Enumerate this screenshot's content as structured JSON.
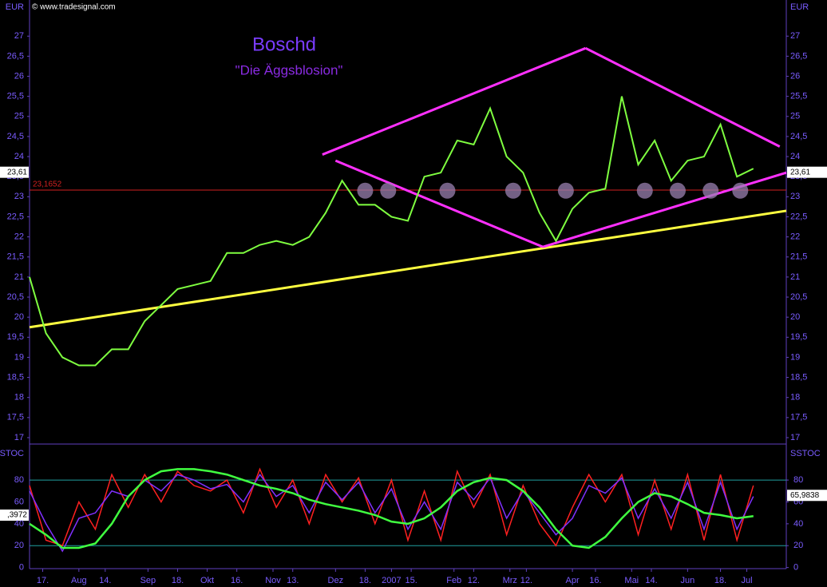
{
  "chart_data": {
    "type": "stock",
    "source": "© www.tradesignal.com",
    "title": "Boschd",
    "subtitle": "\"Die Äggsblosion\"",
    "currency": "EUR",
    "xlim": [
      0,
      230
    ],
    "xticks": [
      {
        "value": 4,
        "label": "17."
      },
      {
        "value": 15,
        "label": "Aug"
      },
      {
        "value": 23,
        "label": "14."
      },
      {
        "value": 36,
        "label": "Sep"
      },
      {
        "value": 45,
        "label": "18."
      },
      {
        "value": 54,
        "label": "Okt"
      },
      {
        "value": 63,
        "label": "16."
      },
      {
        "value": 74,
        "label": "Nov"
      },
      {
        "value": 80,
        "label": "13."
      },
      {
        "value": 93,
        "label": "Dez"
      },
      {
        "value": 102,
        "label": "18."
      },
      {
        "value": 110,
        "label": "2007"
      },
      {
        "value": 116,
        "label": "15."
      },
      {
        "value": 129,
        "label": "Feb"
      },
      {
        "value": 135,
        "label": "12."
      },
      {
        "value": 146,
        "label": "Mrz"
      },
      {
        "value": 151,
        "label": "12."
      },
      {
        "value": 165,
        "label": "Apr"
      },
      {
        "value": 172,
        "label": "16."
      },
      {
        "value": 183,
        "label": "Mai"
      },
      {
        "value": 189,
        "label": "14."
      },
      {
        "value": 200,
        "label": "Jun"
      },
      {
        "value": 210,
        "label": "18."
      },
      {
        "value": 218,
        "label": "Jul"
      }
    ],
    "ylim": [
      16.9,
      27.9
    ],
    "yticks": [
      {
        "value": 17,
        "label": "17"
      },
      {
        "value": 17.5,
        "label": "17,5"
      },
      {
        "value": 18,
        "label": "18"
      },
      {
        "value": 18.5,
        "label": "18,5"
      },
      {
        "value": 19,
        "label": "19"
      },
      {
        "value": 19.5,
        "label": "19,5"
      },
      {
        "value": 20,
        "label": "20"
      },
      {
        "value": 20.5,
        "label": "20,5"
      },
      {
        "value": 21,
        "label": "21"
      },
      {
        "value": 21.5,
        "label": "21,5"
      },
      {
        "value": 22,
        "label": "22"
      },
      {
        "value": 22.5,
        "label": "22,5"
      },
      {
        "value": 23,
        "label": "23"
      },
      {
        "value": 23.5,
        "label": "23,5"
      },
      {
        "value": 24,
        "label": "24"
      },
      {
        "value": 24.5,
        "label": "24,5"
      },
      {
        "value": 25,
        "label": "25"
      },
      {
        "value": 25.5,
        "label": "25,5"
      },
      {
        "value": 26,
        "label": "26"
      },
      {
        "value": 26.5,
        "label": "26,5"
      },
      {
        "value": 27,
        "label": "27"
      }
    ],
    "price": {
      "color": "#7fff40",
      "x": [
        0,
        5,
        10,
        15,
        20,
        25,
        30,
        35,
        40,
        45,
        50,
        55,
        60,
        65,
        70,
        75,
        80,
        85,
        90,
        95,
        100,
        105,
        110,
        115,
        120,
        125,
        130,
        135,
        140,
        145,
        150,
        155,
        160,
        165,
        170,
        175,
        180,
        185,
        190,
        195,
        200,
        205,
        210,
        215,
        220
      ],
      "values": [
        21.0,
        19.6,
        19.0,
        18.8,
        18.8,
        19.2,
        19.2,
        19.9,
        20.3,
        20.7,
        20.8,
        20.9,
        21.6,
        21.6,
        21.8,
        21.9,
        21.8,
        22.0,
        22.6,
        23.4,
        22.8,
        22.8,
        22.5,
        22.4,
        23.5,
        23.6,
        24.4,
        24.3,
        25.2,
        24.0,
        23.6,
        22.6,
        21.9,
        22.7,
        23.1,
        23.2,
        25.5,
        23.8,
        24.4,
        23.4,
        23.9,
        24.0,
        24.8,
        23.5,
        23.7
      ]
    },
    "last_price": {
      "value": 23.61,
      "label": "23,61"
    },
    "support": {
      "value": 23.1652,
      "label": "23,1652",
      "color": "#d02020"
    },
    "trendlines": [
      {
        "color": "#ffff40",
        "points": [
          [
            0,
            19.75
          ],
          [
            230,
            22.65
          ]
        ]
      },
      {
        "color": "#ff30ff",
        "points": [
          [
            89,
            24.05
          ],
          [
            169,
            26.7
          ]
        ]
      },
      {
        "color": "#ff30ff",
        "points": [
          [
            169,
            26.7
          ],
          [
            228,
            24.25
          ]
        ]
      },
      {
        "color": "#ff30ff",
        "points": [
          [
            93,
            23.9
          ],
          [
            156,
            21.75
          ]
        ]
      },
      {
        "color": "#ff30ff",
        "points": [
          [
            156,
            21.75
          ],
          [
            230,
            23.6
          ]
        ]
      }
    ],
    "markers": {
      "x": [
        102,
        109,
        127,
        147,
        163,
        187,
        197,
        207,
        216
      ],
      "y": 23.15,
      "color": "#9a80b0"
    },
    "stoch": {
      "name": "SSTOC",
      "ylim": [
        -1,
        110
      ],
      "yticks": [
        0,
        20,
        40,
        60,
        80
      ],
      "levels": [
        20,
        80
      ],
      "x": [
        0,
        5,
        10,
        15,
        20,
        25,
        30,
        35,
        40,
        45,
        50,
        55,
        60,
        65,
        70,
        75,
        80,
        85,
        90,
        95,
        100,
        105,
        110,
        115,
        120,
        125,
        130,
        135,
        140,
        145,
        150,
        155,
        160,
        165,
        170,
        175,
        180,
        185,
        190,
        195,
        200,
        205,
        210,
        215,
        220
      ],
      "series": [
        {
          "color": "#ff2020",
          "values": [
            75,
            25,
            20,
            60,
            35,
            85,
            55,
            85,
            60,
            88,
            75,
            70,
            80,
            50,
            90,
            55,
            80,
            40,
            85,
            60,
            82,
            40,
            80,
            25,
            70,
            25,
            88,
            55,
            85,
            30,
            75,
            40,
            20,
            55,
            85,
            60,
            85,
            30,
            80,
            35,
            85,
            25,
            85,
            25,
            75
          ]
        },
        {
          "color": "#8030ff",
          "values": [
            70,
            40,
            15,
            45,
            50,
            70,
            65,
            80,
            70,
            85,
            80,
            72,
            76,
            60,
            85,
            65,
            75,
            50,
            78,
            62,
            78,
            50,
            72,
            35,
            60,
            35,
            78,
            62,
            82,
            45,
            70,
            50,
            30,
            45,
            75,
            68,
            82,
            45,
            72,
            45,
            78,
            35,
            78,
            35,
            65
          ]
        },
        {
          "color": "#40ff40",
          "values": [
            40,
            30,
            18,
            18,
            22,
            40,
            65,
            80,
            88,
            90,
            90,
            88,
            85,
            80,
            75,
            72,
            68,
            62,
            58,
            55,
            52,
            48,
            42,
            40,
            45,
            55,
            70,
            78,
            82,
            80,
            70,
            55,
            35,
            20,
            18,
            28,
            45,
            60,
            68,
            65,
            58,
            50,
            48,
            45,
            47
          ]
        }
      ],
      "last_value": {
        "value": 65.9838,
        "label": "65,9838"
      },
      "left_value_label": ",3972"
    }
  }
}
